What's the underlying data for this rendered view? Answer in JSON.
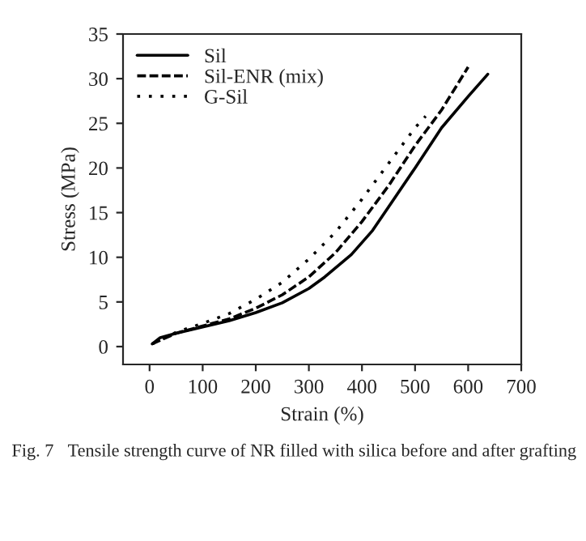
{
  "chart_data": {
    "type": "line",
    "xlabel": "Strain (%)",
    "ylabel": "Stress (MPa)",
    "xlim": [
      -50,
      700
    ],
    "xticks": [
      0,
      100,
      200,
      300,
      400,
      500,
      600,
      700
    ],
    "ylim": [
      -2,
      35
    ],
    "yticks": [
      0,
      5,
      10,
      15,
      20,
      25,
      30,
      35
    ],
    "grid": false,
    "legend": "top left",
    "series": [
      {
        "name": "Sil",
        "color": "#000000",
        "line_style": "solid",
        "x": [
          5,
          20,
          50,
          100,
          150,
          200,
          250,
          300,
          330,
          380,
          420,
          460,
          500,
          550,
          600,
          637
        ],
        "values": [
          0.3,
          1,
          1.5,
          2.2,
          2.9,
          3.8,
          4.9,
          6.5,
          7.8,
          10.3,
          13,
          16.5,
          20,
          24.5,
          28,
          30.5
        ]
      },
      {
        "name": "Sil-ENR (mix)",
        "color": "#000000",
        "line_style": "dashed",
        "x": [
          5,
          50,
          100,
          150,
          200,
          250,
          300,
          350,
          400,
          450,
          500,
          550,
          600
        ],
        "values": [
          0.3,
          1.5,
          2.3,
          3.1,
          4.3,
          5.8,
          7.8,
          10.5,
          14,
          18,
          22.5,
          26.5,
          31.3
        ]
      },
      {
        "name": "G-Sil",
        "color": "#000000",
        "line_style": "dotted",
        "x": [
          5,
          50,
          100,
          150,
          200,
          250,
          300,
          350,
          400,
          450,
          500,
          520
        ],
        "values": [
          0.3,
          1.6,
          2.6,
          3.7,
          5.3,
          7.2,
          9.8,
          12.8,
          16.5,
          20.5,
          24.5,
          25.8
        ]
      }
    ],
    "annotations": [
      "Fig. 7　Tensile strength curve of NR filled with silica before and after grafting"
    ]
  }
}
